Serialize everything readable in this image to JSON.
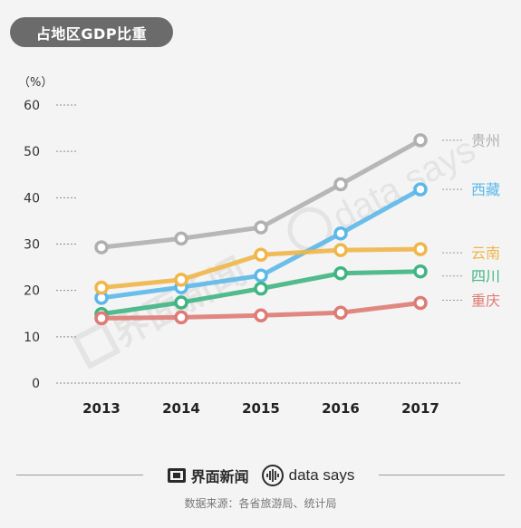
{
  "title": "占地区GDP比重",
  "chart_data": {
    "type": "line",
    "title": "占地区GDP比重",
    "ylabel": "（%）",
    "xlabel": "",
    "categories": [
      "2013",
      "2014",
      "2015",
      "2016",
      "2017"
    ],
    "yticks": [
      0,
      10,
      20,
      30,
      40,
      50,
      60
    ],
    "ylim": [
      0,
      60
    ],
    "grid": false,
    "legend": "right-end labels",
    "series": [
      {
        "name": "贵州",
        "color": "#b0b0b0",
        "values": [
          29.3,
          31.2,
          33.6,
          42.9,
          52.4
        ]
      },
      {
        "name": "西藏",
        "color": "#5bb8e8",
        "values": [
          18.4,
          20.7,
          23.2,
          32.3,
          41.8
        ]
      },
      {
        "name": "云南",
        "color": "#f0b649",
        "values": [
          20.6,
          22.3,
          27.7,
          28.7,
          28.9
        ]
      },
      {
        "name": "四川",
        "color": "#3fb583",
        "values": [
          14.9,
          17.4,
          20.4,
          23.7,
          24.1
        ]
      },
      {
        "name": "重庆",
        "color": "#de7b75",
        "values": [
          14.0,
          14.2,
          14.6,
          15.2,
          17.3
        ]
      }
    ]
  },
  "footer": {
    "brand1": "界面新闻",
    "brand2": "data says",
    "source": "数据来源：各省旅游局、统计局"
  }
}
